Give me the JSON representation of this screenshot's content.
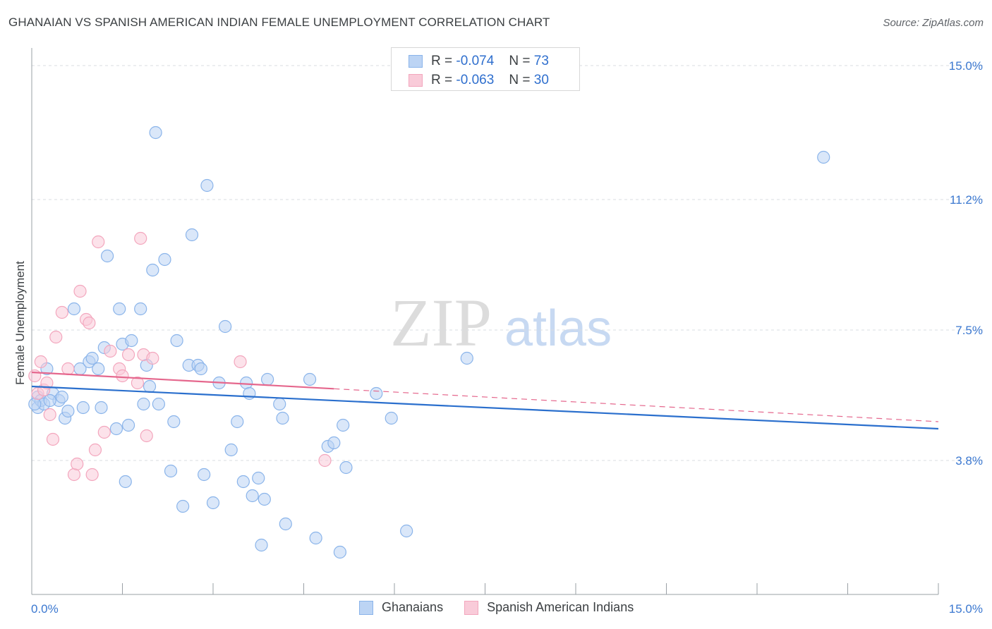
{
  "chart_data": {
    "type": "scatter",
    "title": "GHANAIAN VS SPANISH AMERICAN INDIAN FEMALE UNEMPLOYMENT CORRELATION CHART",
    "source": "Source: ZipAtlas.com",
    "ylabel": "Female Unemployment",
    "xlabel": "",
    "xlim": [
      0,
      15
    ],
    "ylim": [
      0.0,
      15.3
    ],
    "x_tick_labels": {
      "left": "0.0%",
      "right": "15.0%"
    },
    "y_ticks": [
      {
        "value": 3.8,
        "label": "3.8%"
      },
      {
        "value": 7.5,
        "label": "7.5%"
      },
      {
        "value": 11.2,
        "label": "11.2%"
      },
      {
        "value": 15.0,
        "label": "15.0%"
      }
    ],
    "watermark": {
      "part1": "ZIP",
      "part2": "atlas"
    },
    "legend_stats": [
      {
        "r_label": "R =",
        "r_value": "-0.074",
        "n_label": "N =",
        "n_value": "73"
      },
      {
        "r_label": "R =",
        "r_value": "-0.063",
        "n_label": "N =",
        "n_value": "30"
      }
    ],
    "series": [
      {
        "name": "Ghanaians",
        "color": "#8ab4ea",
        "line_color": "#2a6fcd",
        "trend": {
          "x0": 0.0,
          "y0": 5.9,
          "x1": 15.0,
          "y1": 4.7,
          "dashed_from": null
        },
        "points": [
          [
            0.1,
            5.6
          ],
          [
            0.1,
            5.3
          ],
          [
            0.15,
            5.5
          ],
          [
            0.2,
            5.4
          ],
          [
            0.25,
            6.4
          ],
          [
            0.35,
            5.7
          ],
          [
            0.45,
            5.5
          ],
          [
            0.5,
            5.6
          ],
          [
            0.55,
            5.0
          ],
          [
            0.6,
            5.2
          ],
          [
            0.7,
            8.1
          ],
          [
            0.8,
            6.4
          ],
          [
            0.85,
            5.3
          ],
          [
            0.95,
            6.6
          ],
          [
            1.0,
            6.7
          ],
          [
            1.1,
            6.4
          ],
          [
            1.15,
            5.3
          ],
          [
            1.2,
            7.0
          ],
          [
            1.25,
            9.6
          ],
          [
            1.4,
            4.7
          ],
          [
            1.45,
            8.1
          ],
          [
            1.5,
            7.1
          ],
          [
            1.55,
            3.2
          ],
          [
            1.6,
            4.8
          ],
          [
            1.65,
            7.2
          ],
          [
            1.8,
            8.1
          ],
          [
            1.85,
            5.4
          ],
          [
            1.9,
            6.5
          ],
          [
            1.95,
            5.9
          ],
          [
            2.0,
            9.2
          ],
          [
            2.05,
            13.1
          ],
          [
            2.1,
            5.4
          ],
          [
            2.2,
            9.5
          ],
          [
            2.3,
            3.5
          ],
          [
            2.35,
            4.9
          ],
          [
            2.4,
            7.2
          ],
          [
            2.5,
            2.5
          ],
          [
            2.6,
            6.5
          ],
          [
            2.65,
            10.2
          ],
          [
            2.75,
            6.5
          ],
          [
            2.8,
            6.4
          ],
          [
            2.85,
            3.4
          ],
          [
            2.9,
            11.6
          ],
          [
            3.0,
            2.6
          ],
          [
            3.1,
            6.0
          ],
          [
            3.2,
            7.6
          ],
          [
            3.3,
            4.1
          ],
          [
            3.4,
            4.9
          ],
          [
            3.5,
            3.2
          ],
          [
            3.55,
            6.0
          ],
          [
            3.6,
            5.7
          ],
          [
            3.65,
            2.8
          ],
          [
            3.75,
            3.3
          ],
          [
            3.85,
            2.7
          ],
          [
            3.8,
            1.4
          ],
          [
            3.9,
            6.1
          ],
          [
            4.1,
            5.4
          ],
          [
            4.15,
            5.0
          ],
          [
            4.2,
            2.0
          ],
          [
            4.6,
            6.1
          ],
          [
            4.7,
            1.6
          ],
          [
            4.9,
            4.2
          ],
          [
            5.0,
            4.3
          ],
          [
            5.1,
            1.2
          ],
          [
            5.15,
            4.8
          ],
          [
            5.2,
            3.6
          ],
          [
            5.7,
            5.7
          ],
          [
            5.95,
            5.0
          ],
          [
            6.2,
            1.8
          ],
          [
            7.2,
            6.7
          ],
          [
            13.1,
            12.4
          ],
          [
            0.05,
            5.4
          ],
          [
            0.3,
            5.5
          ]
        ]
      },
      {
        "name": "Spanish American Indians",
        "color": "#f3a6bd",
        "line_color": "#e5678d",
        "trend": {
          "x0": 0.0,
          "y0": 6.3,
          "x1": 15.0,
          "y1": 4.9,
          "dashed_from": 5.0
        },
        "points": [
          [
            0.05,
            6.2
          ],
          [
            0.1,
            5.7
          ],
          [
            0.15,
            6.6
          ],
          [
            0.2,
            5.8
          ],
          [
            0.25,
            6.0
          ],
          [
            0.3,
            5.1
          ],
          [
            0.35,
            4.4
          ],
          [
            0.4,
            7.3
          ],
          [
            0.5,
            8.0
          ],
          [
            0.6,
            6.4
          ],
          [
            0.7,
            3.4
          ],
          [
            0.75,
            3.7
          ],
          [
            0.8,
            8.6
          ],
          [
            0.9,
            7.8
          ],
          [
            0.95,
            7.7
          ],
          [
            1.0,
            3.4
          ],
          [
            1.05,
            4.1
          ],
          [
            1.1,
            10.0
          ],
          [
            1.2,
            4.6
          ],
          [
            1.3,
            6.9
          ],
          [
            1.45,
            6.4
          ],
          [
            1.5,
            6.2
          ],
          [
            1.6,
            6.8
          ],
          [
            1.75,
            6.0
          ],
          [
            1.8,
            10.1
          ],
          [
            1.85,
            6.8
          ],
          [
            1.9,
            4.5
          ],
          [
            2.0,
            6.7
          ],
          [
            3.45,
            6.6
          ],
          [
            4.85,
            3.8
          ]
        ]
      }
    ]
  }
}
